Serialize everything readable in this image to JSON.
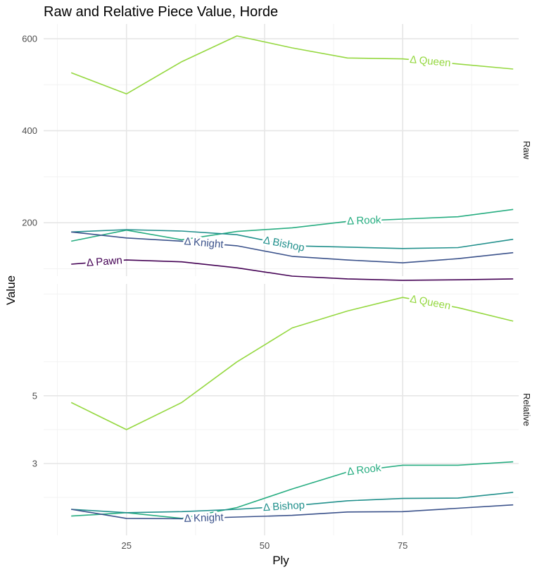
{
  "chart_data": {
    "type": "line",
    "title": "Raw and Relative Piece Value, Horde",
    "xlabel": "Ply",
    "ylabel": "Value",
    "xlim": [
      10,
      96
    ],
    "x_ticks": [
      25,
      50,
      75
    ],
    "colors": {
      "pawn": "#440154",
      "knight": "#3b528b",
      "bishop": "#21908c",
      "rook": "#27ad81",
      "queen": "#95d840"
    },
    "panels": [
      {
        "strip": "Raw",
        "ylim": [
          84,
          632
        ],
        "y_ticks": [
          200,
          400,
          600
        ],
        "x": [
          15,
          25,
          35,
          45,
          55,
          65,
          75,
          85,
          95
        ],
        "series": [
          {
            "key": "queen",
            "name": "Δ Queen",
            "values": [
              526,
              480,
              550,
              606,
              580,
              558,
              556,
              545,
              534
            ]
          },
          {
            "key": "rook",
            "name": "Δ Rook",
            "values": [
              160,
              184,
              163,
              181,
              189,
              203,
              208,
              213,
              229
            ]
          },
          {
            "key": "bishop",
            "name": "Δ Bishop",
            "values": [
              180,
              185,
              182,
              174,
              150,
              147,
              144,
              146,
              164
            ]
          },
          {
            "key": "knight",
            "name": "Δ Knight",
            "values": [
              180,
              167,
              160,
              150,
              127,
              119,
              113,
              122,
              135
            ]
          },
          {
            "key": "pawn",
            "name": "Δ Pawn",
            "values": [
              110,
              119,
              115,
              102,
              84,
              78,
              75,
              76,
              78
            ]
          }
        ],
        "labels": [
          {
            "key": "queen",
            "x": 80,
            "text": "Δ Queen"
          },
          {
            "key": "rook",
            "x": 68,
            "text": "Δ Rook"
          },
          {
            "key": "bishop",
            "x": 53.5,
            "text": "Δ Bishop"
          },
          {
            "key": "knight",
            "x": 39,
            "text": "Δ Knight"
          },
          {
            "key": "pawn",
            "x": 21,
            "text": "Δ Pawn"
          }
        ]
      },
      {
        "strip": "Relative",
        "ylim": [
          0.88,
          8.3
        ],
        "y_ticks": [
          3,
          5
        ],
        "x": [
          15,
          25,
          35,
          45,
          55,
          65,
          75,
          85,
          95
        ],
        "series": [
          {
            "key": "queen",
            "name": "Δ Queen",
            "values": [
              4.8,
              4.0,
              4.8,
              6.0,
              7.0,
              7.5,
              7.9,
              7.6,
              7.2
            ]
          },
          {
            "key": "rook",
            "name": "Δ Rook",
            "values": [
              1.45,
              1.55,
              1.38,
              1.7,
              2.25,
              2.75,
              2.95,
              2.95,
              3.05
            ]
          },
          {
            "key": "bishop",
            "name": "Δ Bishop",
            "values": [
              1.65,
              1.55,
              1.58,
              1.65,
              1.75,
              1.9,
              1.97,
              1.98,
              2.15
            ]
          },
          {
            "key": "knight",
            "name": "Δ Knight",
            "values": [
              1.65,
              1.38,
              1.37,
              1.42,
              1.47,
              1.57,
              1.58,
              1.68,
              1.78
            ]
          }
        ],
        "labels": [
          {
            "key": "queen",
            "x": 80,
            "text": "Δ Queen"
          },
          {
            "key": "rook",
            "x": 68,
            "text": "Δ Rook"
          },
          {
            "key": "bishop",
            "x": 53.5,
            "text": "Δ Bishop"
          },
          {
            "key": "knight",
            "x": 39,
            "text": "Δ Knight"
          }
        ]
      }
    ]
  }
}
